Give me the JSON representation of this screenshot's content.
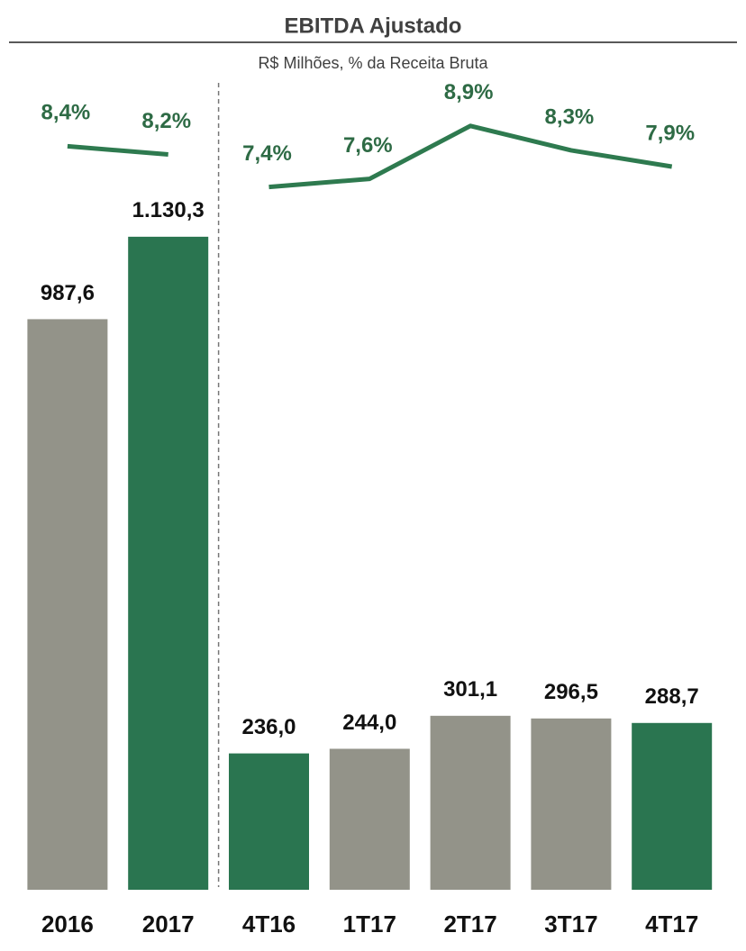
{
  "chart_data": {
    "type": "bar_line",
    "title": "EBITDA Ajustado",
    "subtitle": "R$ Milhões, % da Receita Bruta",
    "categories": [
      "2016",
      "2017",
      "4T16",
      "1T17",
      "2T17",
      "3T17",
      "4T17"
    ],
    "ylim": [
      0,
      1300
    ],
    "y2lim": [
      6,
      10
    ],
    "divider_after": 1,
    "series": [
      {
        "type": "bar",
        "colors": [
          "#939389",
          "#2a7550",
          "#2a7550",
          "#939389",
          "#939389",
          "#939389",
          "#2a7550"
        ],
        "values": [
          987.6,
          1130.3,
          236.0,
          244.0,
          301.1,
          296.5,
          288.7
        ],
        "value_labels": [
          "987,6",
          "1.130,3",
          "236,0",
          "244,0",
          "301,1",
          "296,5",
          "288,7"
        ]
      },
      {
        "type": "line",
        "axis": "y2",
        "color": "#2e7a4f",
        "values": [
          8.4,
          8.2,
          7.4,
          7.6,
          8.9,
          8.3,
          7.9
        ],
        "value_labels": [
          "8,4%",
          "8,2%",
          "7,4%",
          "7,6%",
          "8,9%",
          "8,3%",
          "7,9%"
        ]
      }
    ]
  }
}
